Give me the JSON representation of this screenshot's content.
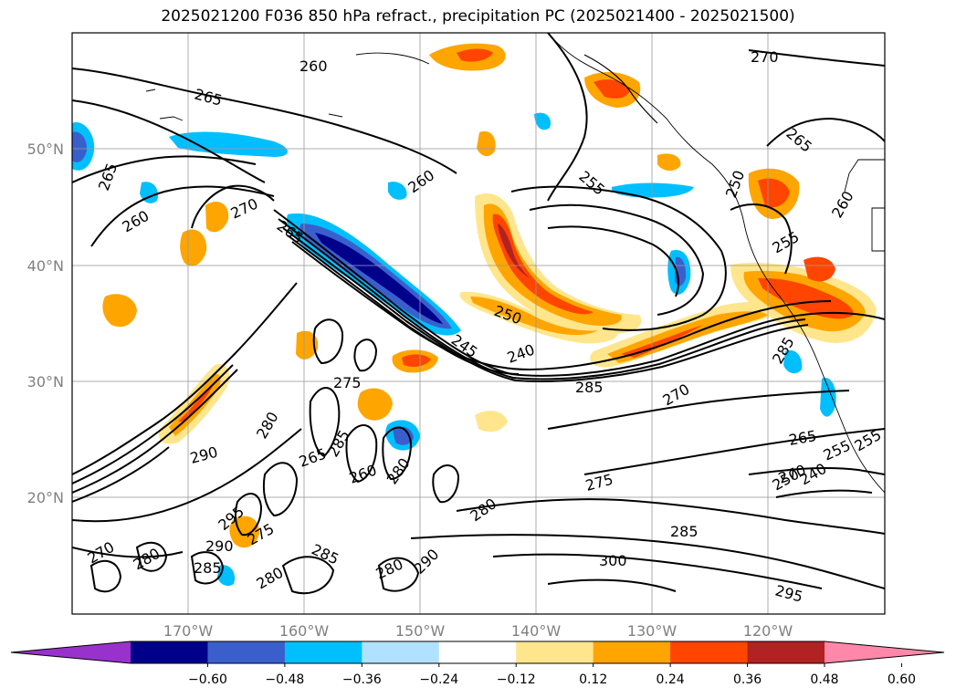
{
  "title": "2025021200 F036 850 hPa refract., precipitation PC (2025021400 - 2025021500)",
  "lat_labels": [
    "50°N",
    "40°N",
    "30°N",
    "20°N"
  ],
  "lon_labels": [
    "170°W",
    "160°W",
    "150°W",
    "140°W",
    "130°W",
    "120°W"
  ],
  "colorbar": {
    "ticks": [
      "−0.60",
      "−0.48",
      "−0.36",
      "−0.24",
      "−0.12",
      "0.12",
      "0.24",
      "0.36",
      "0.48",
      "0.60"
    ],
    "colors": [
      "#9932cc",
      "#00008b",
      "#3a5fcd",
      "#00bfff",
      "#b0e2ff",
      "#ffffff",
      "#ffe68c",
      "#ffa500",
      "#ff4500",
      "#b22222",
      "#ff88aa"
    ]
  },
  "contour_labels": [
    "260",
    "265",
    "265",
    "260",
    "270",
    "265",
    "260",
    "255",
    "270",
    "265",
    "260",
    "250",
    "255",
    "245",
    "240",
    "250",
    "285",
    "270",
    "275",
    "280",
    "285",
    "280",
    "290",
    "285",
    "295",
    "290",
    "275",
    "280",
    "265",
    "260",
    "285",
    "290",
    "280",
    "280",
    "285",
    "275",
    "270",
    "265",
    "255",
    "250",
    "240",
    "300",
    "295",
    "285",
    "280",
    "270",
    "255"
  ],
  "colors": {
    "neg_dark": "#00008b",
    "neg_mid": "#3a5fcd",
    "neg_light": "#00bfff",
    "pos_light": "#ffe68c",
    "pos_mid": "#ffa500",
    "pos_strong": "#ff4500",
    "pos_dark": "#b22222"
  }
}
